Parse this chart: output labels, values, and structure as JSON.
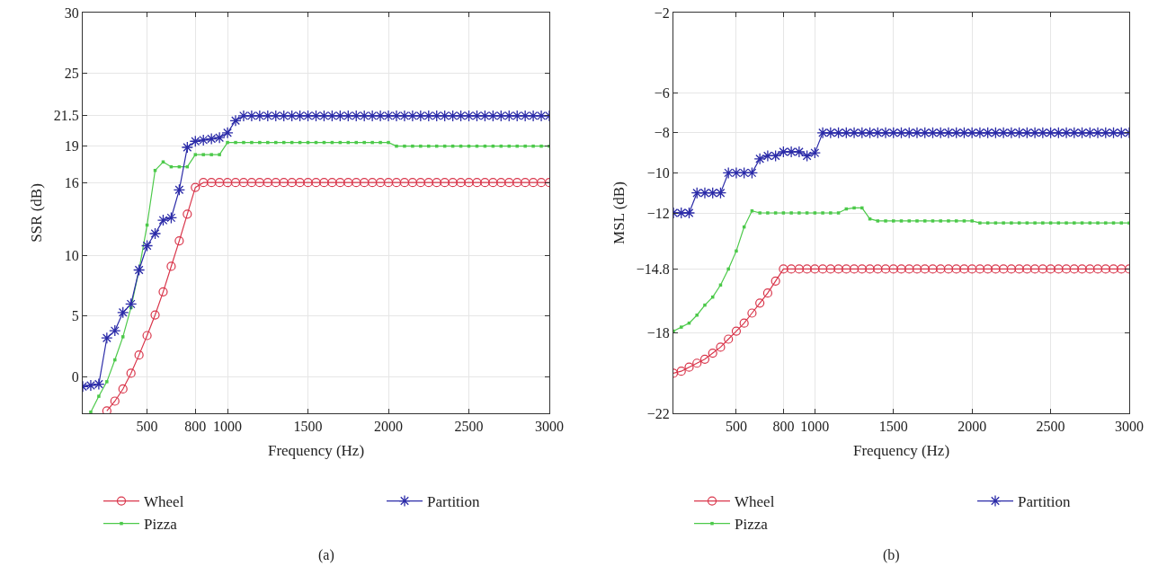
{
  "chart_data": [
    {
      "type": "line",
      "xlabel": "Frequency (Hz)",
      "ylabel": "SSR (dB)",
      "annotations": [
        "(a)"
      ],
      "x": [
        100,
        150,
        200,
        250,
        300,
        350,
        400,
        450,
        500,
        550,
        600,
        650,
        700,
        750,
        800,
        850,
        900,
        950,
        1000,
        1050,
        1100,
        1150,
        1200,
        1250,
        1300,
        1350,
        1400,
        1450,
        1500,
        1550,
        1600,
        1650,
        1700,
        1750,
        1800,
        1850,
        1900,
        1950,
        2000,
        2050,
        2100,
        2150,
        2200,
        2250,
        2300,
        2350,
        2400,
        2450,
        2500,
        2550,
        2600,
        2650,
        2700,
        2750,
        2800,
        2850,
        2900,
        2950,
        3000
      ],
      "series": [
        {
          "name": "Wheel",
          "color": "#d9364b",
          "marker": "circle",
          "values": [
            null,
            null,
            null,
            -2.8,
            -2.0,
            -1.0,
            0.3,
            1.8,
            3.4,
            5.1,
            7.0,
            9.1,
            11.2,
            13.4,
            15.6,
            16,
            16,
            16,
            16,
            16,
            16,
            16,
            16,
            16,
            16,
            16,
            16,
            16,
            16,
            16,
            16,
            16,
            16,
            16,
            16,
            16,
            16,
            16,
            16,
            16,
            16,
            16,
            16,
            16,
            16,
            16,
            16,
            16,
            16,
            16,
            16,
            16,
            16,
            16,
            16,
            16,
            16,
            16,
            16
          ]
        },
        {
          "name": "Pizza",
          "color": "#4cc94a",
          "marker": "square",
          "values": [
            null,
            -2.9,
            -1.6,
            -0.4,
            1.4,
            3.3,
            5.7,
            8.8,
            12.5,
            17.0,
            17.7,
            17.3,
            17.3,
            17.3,
            18.3,
            18.3,
            18.3,
            18.3,
            19.3,
            19.3,
            19.3,
            19.3,
            19.3,
            19.3,
            19.3,
            19.3,
            19.3,
            19.3,
            19.3,
            19.3,
            19.3,
            19.3,
            19.3,
            19.3,
            19.3,
            19.3,
            19.3,
            19.3,
            19.3,
            19.0,
            19.0,
            19.0,
            19.0,
            19.0,
            19.0,
            19.0,
            19.0,
            19.0,
            19.0,
            19.0,
            19.0,
            19.0,
            19.0,
            19.0,
            19.0,
            19.0,
            19.0,
            19.0,
            19.0
          ]
        },
        {
          "name": "Partition",
          "color": "#2b2ba8",
          "marker": "cross",
          "values": [
            -0.8,
            -0.7,
            -0.6,
            3.2,
            3.8,
            5.3,
            6.0,
            8.8,
            10.8,
            11.8,
            12.9,
            13.1,
            15.4,
            18.9,
            19.4,
            19.5,
            19.6,
            19.7,
            20.1,
            21.1,
            21.5,
            21.5,
            21.5,
            21.5,
            21.5,
            21.5,
            21.5,
            21.5,
            21.5,
            21.5,
            21.5,
            21.5,
            21.5,
            21.5,
            21.5,
            21.5,
            21.5,
            21.5,
            21.5,
            21.5,
            21.5,
            21.5,
            21.5,
            21.5,
            21.5,
            21.5,
            21.5,
            21.5,
            21.5,
            21.5,
            21.5,
            21.5,
            21.5,
            21.5,
            21.5,
            21.5,
            21.5,
            21.5,
            21.5
          ]
        }
      ],
      "xlim": [
        100,
        3000
      ],
      "xticks": [
        500,
        800,
        1000,
        1500,
        2000,
        2500,
        3000
      ],
      "ylim": [
        -3,
        30
      ],
      "yticks": [
        0,
        5,
        10,
        16,
        19,
        21.5,
        25,
        30
      ],
      "grid": true,
      "legend": "bottom",
      "line_style": "solid"
    },
    {
      "type": "line",
      "xlabel": "Frequency (Hz)",
      "ylabel": "MSL (dB)",
      "annotations": [
        "(b)"
      ],
      "x": [
        100,
        150,
        200,
        250,
        300,
        350,
        400,
        450,
        500,
        550,
        600,
        650,
        700,
        750,
        800,
        850,
        900,
        950,
        1000,
        1050,
        1100,
        1150,
        1200,
        1250,
        1300,
        1350,
        1400,
        1450,
        1500,
        1550,
        1600,
        1650,
        1700,
        1750,
        1800,
        1850,
        1900,
        1950,
        2000,
        2050,
        2100,
        2150,
        2200,
        2250,
        2300,
        2350,
        2400,
        2450,
        2500,
        2550,
        2600,
        2650,
        2700,
        2750,
        2800,
        2850,
        2900,
        2950,
        3000
      ],
      "series": [
        {
          "name": "Wheel",
          "color": "#d9364b",
          "marker": "circle",
          "values": [
            -20.0,
            -19.9,
            -19.7,
            -19.5,
            -19.3,
            -19.0,
            -18.7,
            -18.3,
            -17.9,
            -17.5,
            -17.0,
            -16.5,
            -16.0,
            -15.4,
            -14.8,
            -14.8,
            -14.8,
            -14.8,
            -14.8,
            -14.8,
            -14.8,
            -14.8,
            -14.8,
            -14.8,
            -14.8,
            -14.8,
            -14.8,
            -14.8,
            -14.8,
            -14.8,
            -14.8,
            -14.8,
            -14.8,
            -14.8,
            -14.8,
            -14.8,
            -14.8,
            -14.8,
            -14.8,
            -14.8,
            -14.8,
            -14.8,
            -14.8,
            -14.8,
            -14.8,
            -14.8,
            -14.8,
            -14.8,
            -14.8,
            -14.8,
            -14.8,
            -14.8,
            -14.8,
            -14.8,
            -14.8,
            -14.8,
            -14.8,
            -14.8,
            -14.8
          ]
        },
        {
          "name": "Pizza",
          "color": "#4cc94a",
          "marker": "square",
          "values": [
            -17.9,
            -17.7,
            -17.5,
            -17.1,
            -16.6,
            -16.2,
            -15.6,
            -14.8,
            -13.9,
            -12.7,
            -11.9,
            -12.0,
            -12.0,
            -12.0,
            -12.0,
            -12.0,
            -12.0,
            -12.0,
            -12.0,
            -12.0,
            -12.0,
            -12.0,
            -11.8,
            -11.75,
            -11.75,
            -12.3,
            -12.4,
            -12.4,
            -12.4,
            -12.4,
            -12.4,
            -12.4,
            -12.4,
            -12.4,
            -12.4,
            -12.4,
            -12.4,
            -12.4,
            -12.4,
            -12.5,
            -12.5,
            -12.5,
            -12.5,
            -12.5,
            -12.5,
            -12.5,
            -12.5,
            -12.5,
            -12.5,
            -12.5,
            -12.5,
            -12.5,
            -12.5,
            -12.5,
            -12.5,
            -12.5,
            -12.5,
            -12.5,
            -12.5
          ]
        },
        {
          "name": "Partition",
          "color": "#2b2ba8",
          "marker": "cross",
          "values": [
            -12,
            -12,
            -12,
            -11,
            -11,
            -11,
            -11,
            -10,
            -10,
            -10,
            -10,
            -9.3,
            -9.15,
            -9.15,
            -8.95,
            -8.95,
            -8.95,
            -9.15,
            -9.0,
            -8,
            -8,
            -8,
            -8,
            -8,
            -8,
            -8,
            -8,
            -8,
            -8,
            -8,
            -8,
            -8,
            -8,
            -8,
            -8,
            -8,
            -8,
            -8,
            -8,
            -8,
            -8,
            -8,
            -8,
            -8,
            -8,
            -8,
            -8,
            -8,
            -8,
            -8,
            -8,
            -8,
            -8,
            -8,
            -8,
            -8,
            -8,
            -8,
            -8
          ]
        }
      ],
      "xlim": [
        100,
        3000
      ],
      "xticks": [
        500,
        800,
        1000,
        1500,
        2000,
        2500,
        3000
      ],
      "ylim": [
        -22,
        -2
      ],
      "yticks": [
        -22,
        -18,
        -14.8,
        -12,
        -10,
        -8,
        -6,
        -2
      ],
      "grid": true,
      "legend": "bottom",
      "line_style": "solid"
    }
  ]
}
